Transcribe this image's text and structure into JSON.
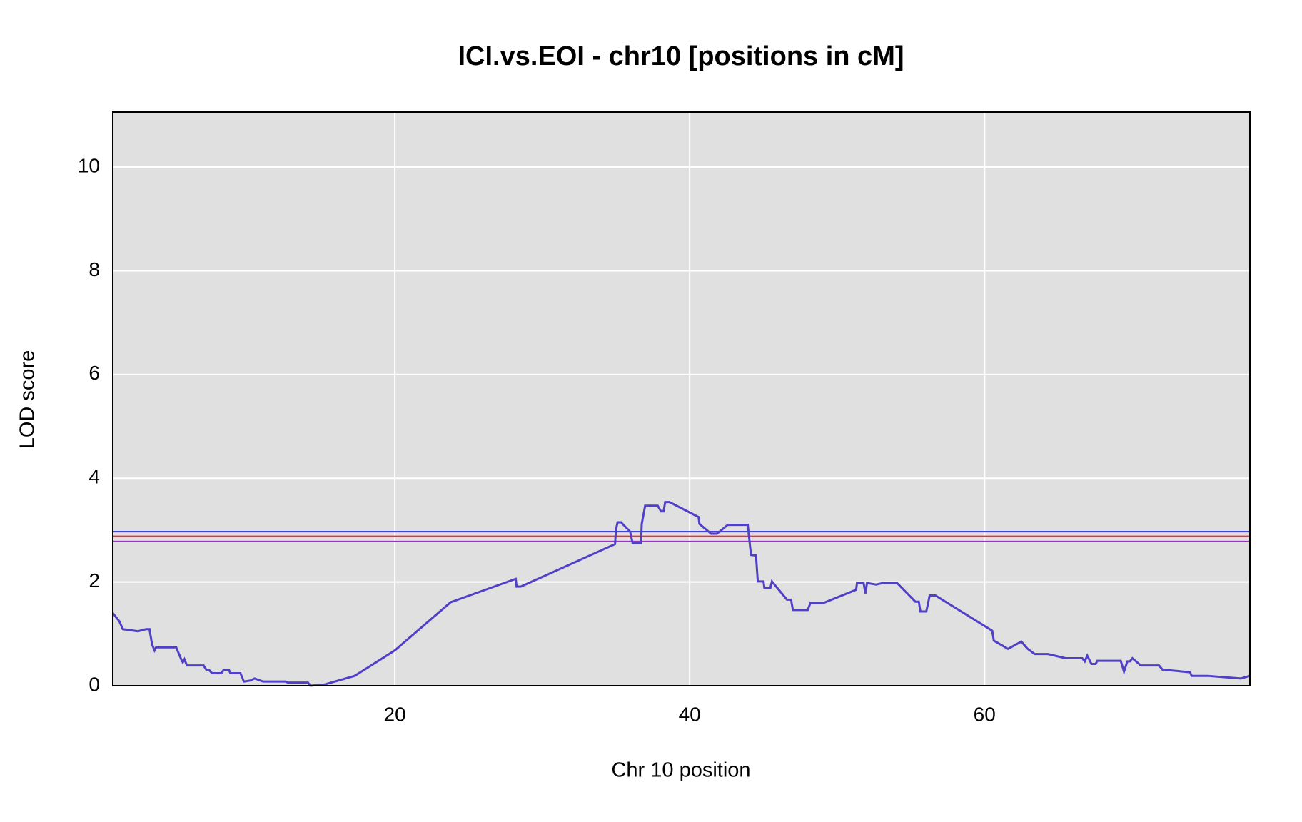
{
  "chart_data": {
    "type": "line",
    "title": "ICI.vs.EOI - chr10 [positions in cM]",
    "x_label": "Chr 10 position",
    "y_label": "LOD score",
    "xlim": [
      0.87,
      78.0
    ],
    "ylim": [
      0,
      11.06
    ],
    "xticks": [
      20,
      40,
      60
    ],
    "yticks": [
      0,
      2,
      4,
      6,
      8,
      10
    ],
    "grid": true,
    "background": "#e0e0e0",
    "hlines": [
      {
        "value": 2.97,
        "color": "#2b2bdc"
      },
      {
        "value": 2.88,
        "color": "#dd3344"
      },
      {
        "value": 2.78,
        "color": "#9a2fc0"
      }
    ],
    "series": [
      {
        "color": "#5040c8",
        "x": [
          0.87,
          1.32,
          1.55,
          2.57,
          3.13,
          3.36,
          3.53,
          3.7,
          3.81,
          5.17,
          5.51,
          5.62,
          5.73,
          5.9,
          7.03,
          7.21,
          7.38,
          7.6,
          8.23,
          8.4,
          8.74,
          8.85,
          9.53,
          9.76,
          10.21,
          10.49,
          11.06,
          12.58,
          12.75,
          14.11,
          14.28,
          15.19,
          17.28,
          20.0,
          23.79,
          28.2,
          28.26,
          28.54,
          34.94,
          35.0,
          35.11,
          35.34,
          35.96,
          36.13,
          36.7,
          36.75,
          36.98,
          37.83,
          38.06,
          38.23,
          38.34,
          38.63,
          40.61,
          40.66,
          41.45,
          41.85,
          42.58,
          43.94,
          44.16,
          44.5,
          44.62,
          45.01,
          45.07,
          45.47,
          45.58,
          46.6,
          46.88,
          47.0,
          48.01,
          48.18,
          49.03,
          51.29,
          51.35,
          51.8,
          51.92,
          52.03,
          52.65,
          53.1,
          54.07,
          55.31,
          55.54,
          55.65,
          56.05,
          56.28,
          56.67,
          60.52,
          60.63,
          61.59,
          62.5,
          62.89,
          63.4,
          64.31,
          65.5,
          66.63,
          66.8,
          66.97,
          67.25,
          67.54,
          67.65,
          69.24,
          69.46,
          69.69,
          69.86,
          70.03,
          70.6,
          71.84,
          72.07,
          73.94,
          74.05,
          75.13,
          77.39,
          78.0
        ],
        "values": [
          1.4,
          1.24,
          1.09,
          1.05,
          1.09,
          1.09,
          0.8,
          0.68,
          0.74,
          0.74,
          0.51,
          0.45,
          0.51,
          0.39,
          0.39,
          0.31,
          0.31,
          0.24,
          0.24,
          0.31,
          0.31,
          0.24,
          0.24,
          0.08,
          0.1,
          0.14,
          0.08,
          0.08,
          0.06,
          0.06,
          0,
          0.02,
          0.19,
          0.68,
          1.61,
          2.06,
          1.91,
          1.91,
          2.73,
          3.01,
          3.15,
          3.15,
          2.97,
          2.75,
          2.75,
          3.12,
          3.47,
          3.47,
          3.36,
          3.36,
          3.54,
          3.54,
          3.25,
          3.12,
          2.93,
          2.93,
          3.1,
          3.1,
          2.52,
          2.51,
          2.01,
          2.01,
          1.88,
          1.88,
          2.01,
          1.66,
          1.66,
          1.46,
          1.46,
          1.59,
          1.59,
          1.85,
          1.98,
          1.98,
          1.78,
          1.98,
          1.95,
          1.98,
          1.98,
          1.62,
          1.62,
          1.43,
          1.43,
          1.74,
          1.74,
          1.06,
          0.87,
          0.71,
          0.85,
          0.72,
          0.61,
          0.61,
          0.53,
          0.53,
          0.47,
          0.58,
          0.42,
          0.42,
          0.48,
          0.48,
          0.27,
          0.47,
          0.47,
          0.53,
          0.39,
          0.39,
          0.31,
          0.26,
          0.19,
          0.19,
          0.14,
          0.19
        ]
      }
    ]
  }
}
